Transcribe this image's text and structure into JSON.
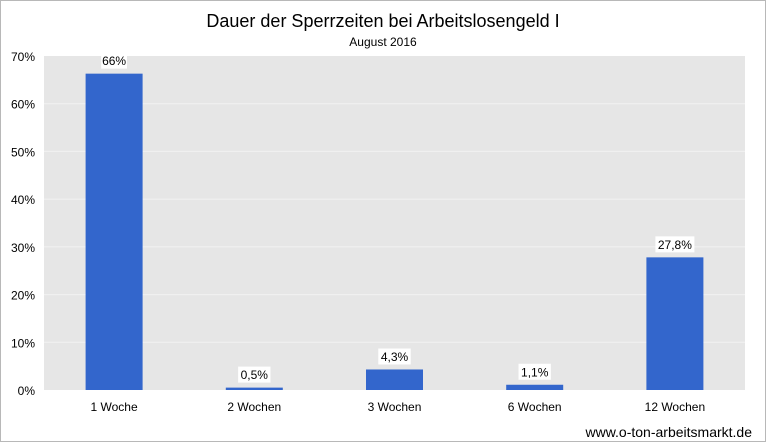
{
  "chart_data": {
    "type": "bar",
    "title": "Dauer der Sperrzeiten bei Arbeitslosengeld I",
    "subtitle": "August 2016",
    "categories": [
      "1 Woche",
      "2 Wochen",
      "3 Wochen",
      "6 Wochen",
      "12 Wochen"
    ],
    "values": [
      66.3,
      0.5,
      4.3,
      1.1,
      27.8
    ],
    "data_labels": [
      "66%",
      "0,5%",
      "4,3%",
      "1,1%",
      "27,8%"
    ],
    "ylim": [
      0,
      70
    ],
    "yticks": [
      0,
      10,
      20,
      30,
      40,
      50,
      60,
      70
    ],
    "ytick_labels": [
      "0%",
      "10%",
      "20%",
      "30%",
      "40%",
      "50%",
      "60%",
      "70%"
    ],
    "xlabel": "",
    "ylabel": "",
    "grid": true,
    "legend": "none",
    "colors": {
      "bar": "#3366cc",
      "plot_bg": "#e6e6e6",
      "grid": "#f2f2f2"
    }
  },
  "footer": {
    "source": "www.o-ton-arbeitsmarkt.de"
  }
}
